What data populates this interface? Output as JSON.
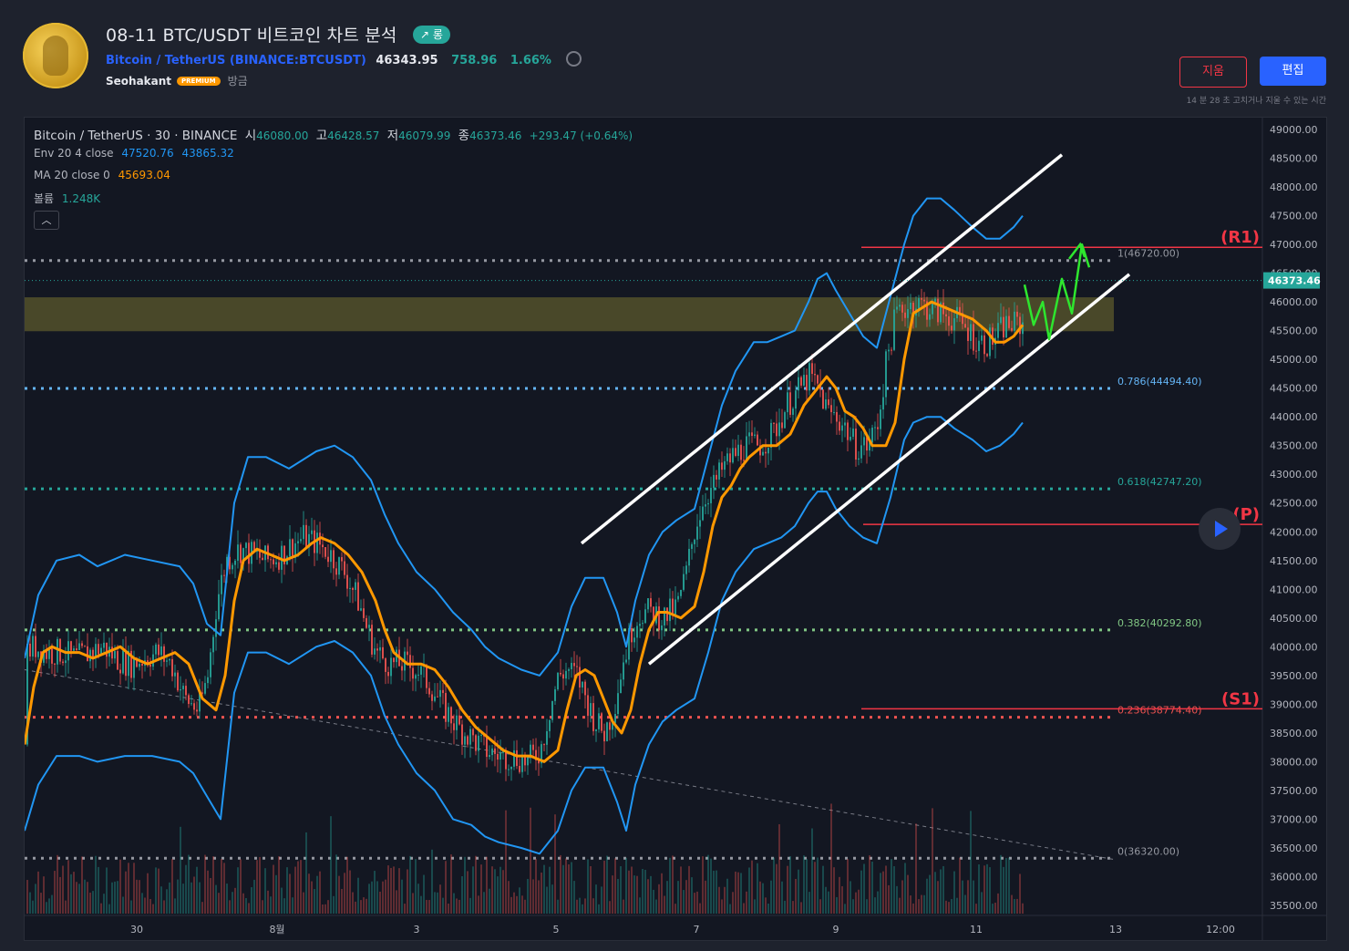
{
  "idea": {
    "title": "08-11 BTC/USDT 비트코인 차트 분석",
    "badge": "↗ 롱",
    "symbol_name": "Bitcoin / TetherUS",
    "symbol_code": "(BINANCE:BTCUSDT)",
    "price": "46343.95",
    "change": "758.96",
    "change_pct": "1.66%",
    "author": "Seohakant",
    "premium_label": "PREMIUM",
    "posted": "방금"
  },
  "actions": {
    "delete_label": "지움",
    "edit_label": "편집",
    "edit_note": "14 분 28 초 고치거나 지울 수 있는 시간"
  },
  "legend": {
    "symbol": "Bitcoin / TetherUS",
    "interval": "30",
    "exchange": "BINANCE",
    "open_label": "시",
    "open": "46080.00",
    "high_label": "고",
    "high": "46428.57",
    "low_label": "저",
    "low": "46079.99",
    "close_label": "종",
    "close": "46373.46",
    "change": "+293.47 (+0.64%)",
    "env_label": "Env 20 4 close",
    "env_upper": "47520.76",
    "env_lower": "43865.32",
    "ma_label": "MA 20 close 0",
    "ma_value": "45693.04",
    "volume_label": "볼륨",
    "volume_value": "1.248K",
    "collapse_icon": "chevron-up-icon"
  },
  "chart_data": {
    "type": "candlestick",
    "price_axis": [
      "49000.00",
      "48500.00",
      "48000.00",
      "47500.00",
      "47000.00",
      "46500.00",
      "46000.00",
      "45500.00",
      "45000.00",
      "44500.00",
      "44000.00",
      "43500.00",
      "43000.00",
      "42500.00",
      "42000.00",
      "41500.00",
      "41000.00",
      "40500.00",
      "40000.00",
      "39500.00",
      "39000.00",
      "38500.00",
      "38000.00",
      "37500.00",
      "37000.00",
      "36500.00",
      "36000.00",
      "35500.00"
    ],
    "ylim": [
      35300,
      49200
    ],
    "time_axis": [
      "30",
      "8월",
      "3",
      "5",
      "7",
      "9",
      "11",
      "13",
      "12:00"
    ],
    "current_price_label": "46373.46",
    "fib_levels": [
      {
        "label": "1(46720.00)",
        "value": 46720,
        "color": "#9598a1"
      },
      {
        "label": "0.786(44494.40)",
        "value": 44494.4,
        "color": "#64b5f6"
      },
      {
        "label": "0.618(42747.20)",
        "value": 42747.2,
        "color": "#26a69a"
      },
      {
        "label": "0.382(40292.80)",
        "value": 40292.8,
        "color": "#81c784"
      },
      {
        "label": "0.236(38774.40)",
        "value": 38774.4,
        "color": "#ef5350"
      },
      {
        "label": "0(36320.00)",
        "value": 36320,
        "color": "#9598a1"
      }
    ],
    "pivot_levels": [
      {
        "label": "(R1)",
        "value": 46950
      },
      {
        "label": "(P)",
        "value": 42130
      },
      {
        "label": "(S1)",
        "value": 38920
      }
    ],
    "zone": {
      "from": 45490,
      "to": 46080
    },
    "ma_series": [
      [
        0,
        38300
      ],
      [
        10,
        39300
      ],
      [
        20,
        39900
      ],
      [
        30,
        40000
      ],
      [
        45,
        39900
      ],
      [
        60,
        39900
      ],
      [
        75,
        39800
      ],
      [
        90,
        39900
      ],
      [
        105,
        40000
      ],
      [
        120,
        39800
      ],
      [
        135,
        39700
      ],
      [
        150,
        39800
      ],
      [
        165,
        39900
      ],
      [
        180,
        39700
      ],
      [
        195,
        39100
      ],
      [
        210,
        38900
      ],
      [
        220,
        39500
      ],
      [
        230,
        40800
      ],
      [
        240,
        41500
      ],
      [
        255,
        41700
      ],
      [
        270,
        41600
      ],
      [
        285,
        41500
      ],
      [
        300,
        41600
      ],
      [
        315,
        41800
      ],
      [
        325,
        41900
      ],
      [
        340,
        41800
      ],
      [
        355,
        41600
      ],
      [
        370,
        41300
      ],
      [
        385,
        40800
      ],
      [
        395,
        40300
      ],
      [
        405,
        39900
      ],
      [
        420,
        39700
      ],
      [
        435,
        39700
      ],
      [
        450,
        39600
      ],
      [
        465,
        39300
      ],
      [
        480,
        38900
      ],
      [
        495,
        38600
      ],
      [
        510,
        38400
      ],
      [
        525,
        38200
      ],
      [
        540,
        38100
      ],
      [
        555,
        38100
      ],
      [
        570,
        38000
      ],
      [
        585,
        38200
      ],
      [
        595,
        38900
      ],
      [
        605,
        39500
      ],
      [
        615,
        39600
      ],
      [
        625,
        39500
      ],
      [
        635,
        39100
      ],
      [
        645,
        38700
      ],
      [
        655,
        38500
      ],
      [
        665,
        38900
      ],
      [
        675,
        39700
      ],
      [
        685,
        40300
      ],
      [
        695,
        40600
      ],
      [
        705,
        40600
      ],
      [
        720,
        40500
      ],
      [
        735,
        40700
      ],
      [
        745,
        41300
      ],
      [
        755,
        42100
      ],
      [
        765,
        42600
      ],
      [
        775,
        42800
      ],
      [
        785,
        43100
      ],
      [
        795,
        43300
      ],
      [
        810,
        43500
      ],
      [
        825,
        43500
      ],
      [
        840,
        43700
      ],
      [
        855,
        44200
      ],
      [
        870,
        44500
      ],
      [
        880,
        44700
      ],
      [
        890,
        44500
      ],
      [
        900,
        44100
      ],
      [
        910,
        44000
      ],
      [
        920,
        43800
      ],
      [
        930,
        43500
      ],
      [
        945,
        43500
      ],
      [
        955,
        43900
      ],
      [
        965,
        45000
      ],
      [
        975,
        45800
      ],
      [
        985,
        45900
      ],
      [
        995,
        46000
      ],
      [
        1010,
        45900
      ],
      [
        1025,
        45800
      ],
      [
        1040,
        45700
      ],
      [
        1055,
        45500
      ],
      [
        1065,
        45300
      ],
      [
        1075,
        45300
      ],
      [
        1085,
        45400
      ],
      [
        1095,
        45600
      ]
    ],
    "env_upper_series": [
      [
        0,
        39800
      ],
      [
        15,
        40900
      ],
      [
        35,
        41500
      ],
      [
        60,
        41600
      ],
      [
        80,
        41400
      ],
      [
        110,
        41600
      ],
      [
        140,
        41500
      ],
      [
        170,
        41400
      ],
      [
        185,
        41100
      ],
      [
        200,
        40400
      ],
      [
        215,
        40200
      ],
      [
        230,
        42500
      ],
      [
        245,
        43300
      ],
      [
        265,
        43300
      ],
      [
        290,
        43100
      ],
      [
        320,
        43400
      ],
      [
        340,
        43500
      ],
      [
        360,
        43300
      ],
      [
        380,
        42900
      ],
      [
        395,
        42300
      ],
      [
        410,
        41800
      ],
      [
        430,
        41300
      ],
      [
        450,
        41000
      ],
      [
        470,
        40600
      ],
      [
        490,
        40300
      ],
      [
        505,
        40000
      ],
      [
        520,
        39800
      ],
      [
        545,
        39600
      ],
      [
        565,
        39500
      ],
      [
        585,
        39900
      ],
      [
        600,
        40700
      ],
      [
        615,
        41200
      ],
      [
        635,
        41200
      ],
      [
        650,
        40600
      ],
      [
        660,
        40000
      ],
      [
        670,
        40800
      ],
      [
        685,
        41600
      ],
      [
        700,
        42000
      ],
      [
        715,
        42200
      ],
      [
        735,
        42400
      ],
      [
        750,
        43300
      ],
      [
        765,
        44200
      ],
      [
        780,
        44800
      ],
      [
        800,
        45300
      ],
      [
        815,
        45300
      ],
      [
        830,
        45400
      ],
      [
        845,
        45500
      ],
      [
        860,
        46000
      ],
      [
        870,
        46400
      ],
      [
        880,
        46500
      ],
      [
        890,
        46200
      ],
      [
        905,
        45800
      ],
      [
        920,
        45400
      ],
      [
        935,
        45200
      ],
      [
        950,
        46100
      ],
      [
        965,
        47000
      ],
      [
        975,
        47500
      ],
      [
        990,
        47800
      ],
      [
        1005,
        47800
      ],
      [
        1020,
        47600
      ],
      [
        1040,
        47300
      ],
      [
        1055,
        47100
      ],
      [
        1070,
        47100
      ],
      [
        1085,
        47300
      ],
      [
        1095,
        47500
      ]
    ],
    "env_lower_series": [
      [
        0,
        36800
      ],
      [
        15,
        37600
      ],
      [
        35,
        38100
      ],
      [
        60,
        38100
      ],
      [
        80,
        38000
      ],
      [
        110,
        38100
      ],
      [
        140,
        38100
      ],
      [
        170,
        38000
      ],
      [
        185,
        37800
      ],
      [
        200,
        37400
      ],
      [
        215,
        37000
      ],
      [
        230,
        39200
      ],
      [
        245,
        39900
      ],
      [
        265,
        39900
      ],
      [
        290,
        39700
      ],
      [
        320,
        40000
      ],
      [
        340,
        40100
      ],
      [
        360,
        39900
      ],
      [
        380,
        39500
      ],
      [
        395,
        38800
      ],
      [
        410,
        38300
      ],
      [
        430,
        37800
      ],
      [
        450,
        37500
      ],
      [
        470,
        37000
      ],
      [
        490,
        36900
      ],
      [
        505,
        36700
      ],
      [
        520,
        36600
      ],
      [
        545,
        36500
      ],
      [
        565,
        36400
      ],
      [
        585,
        36800
      ],
      [
        600,
        37500
      ],
      [
        615,
        37900
      ],
      [
        635,
        37900
      ],
      [
        650,
        37300
      ],
      [
        660,
        36800
      ],
      [
        670,
        37600
      ],
      [
        685,
        38300
      ],
      [
        700,
        38700
      ],
      [
        715,
        38900
      ],
      [
        735,
        39100
      ],
      [
        750,
        39900
      ],
      [
        765,
        40800
      ],
      [
        780,
        41300
      ],
      [
        800,
        41700
      ],
      [
        815,
        41800
      ],
      [
        830,
        41900
      ],
      [
        845,
        42100
      ],
      [
        860,
        42500
      ],
      [
        870,
        42700
      ],
      [
        880,
        42700
      ],
      [
        890,
        42400
      ],
      [
        905,
        42100
      ],
      [
        920,
        41900
      ],
      [
        935,
        41800
      ],
      [
        950,
        42600
      ],
      [
        965,
        43600
      ],
      [
        975,
        43900
      ],
      [
        990,
        44000
      ],
      [
        1005,
        44000
      ],
      [
        1020,
        43800
      ],
      [
        1040,
        43600
      ],
      [
        1055,
        43400
      ],
      [
        1070,
        43500
      ],
      [
        1085,
        43700
      ],
      [
        1095,
        43900
      ]
    ]
  },
  "colors": {
    "background": "#131722",
    "ma": "#ff9800",
    "envelope": "#2196f3",
    "up": "#26a69a",
    "down": "#ef5350",
    "channel": "#ffffff",
    "projection": "#2ee62e",
    "pivot": "#f23645"
  }
}
